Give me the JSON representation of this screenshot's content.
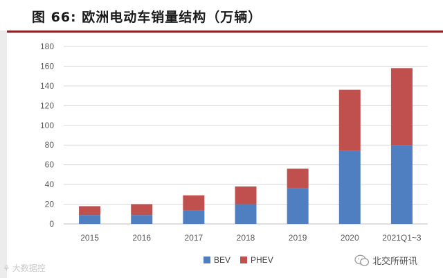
{
  "header": {
    "title": "图 66:  欧洲电动车销量结构（万辆）"
  },
  "watermarks": {
    "left_text": "大数据控",
    "right_text": "北交所研讯"
  },
  "colors": {
    "bev": "#4f7fc0",
    "phev": "#c0504d",
    "title_rule": "#8b1e1e",
    "grid": "#d9d9d9",
    "axis_text": "#595959"
  },
  "chart_data": {
    "type": "bar",
    "stacked": true,
    "title": "欧洲电动车销量结构（万辆）",
    "xlabel": "",
    "ylabel": "",
    "categories": [
      "2015",
      "2016",
      "2017",
      "2018",
      "2019",
      "2020",
      "2021Q1~3"
    ],
    "series": [
      {
        "name": "BEV",
        "values": [
          9,
          9,
          14,
          20,
          36,
          74,
          80
        ]
      },
      {
        "name": "PHEV",
        "values": [
          9,
          11,
          15,
          18,
          20,
          62,
          78
        ]
      }
    ],
    "ylim": [
      0,
      180
    ],
    "yticks": [
      0,
      20,
      40,
      60,
      80,
      100,
      120,
      140,
      160,
      180
    ],
    "grid": true,
    "legend_position": "bottom-center"
  }
}
